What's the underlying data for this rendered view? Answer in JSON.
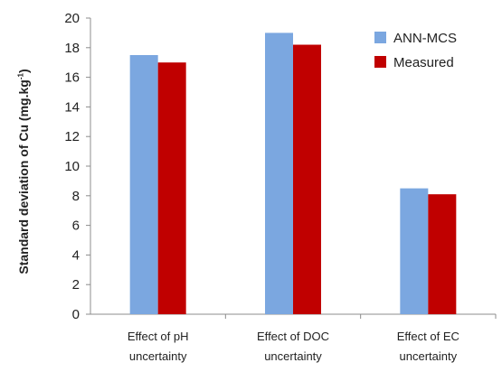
{
  "chart_data": {
    "type": "bar",
    "ylabel": "Standard deviation of Cu (mg.kg",
    "ylabel_sup": "-1",
    "ylabel_end": ")",
    "ylim": [
      0,
      20
    ],
    "yticks": [
      0,
      2,
      4,
      6,
      8,
      10,
      12,
      14,
      16,
      18,
      20
    ],
    "grid": false,
    "legend_position": "top-right",
    "categories": [
      [
        "Effect of pH",
        "uncertainty"
      ],
      [
        "Effect of DOC",
        "uncertainty"
      ],
      [
        "Effect of EC",
        "uncertainty"
      ]
    ],
    "series": [
      {
        "name": "ANN-MCS",
        "color": "#7ba7e0",
        "values": [
          17.5,
          19.0,
          8.5
        ]
      },
      {
        "name": "Measured",
        "color": "#c00000",
        "values": [
          17.0,
          18.2,
          8.1
        ]
      }
    ]
  }
}
